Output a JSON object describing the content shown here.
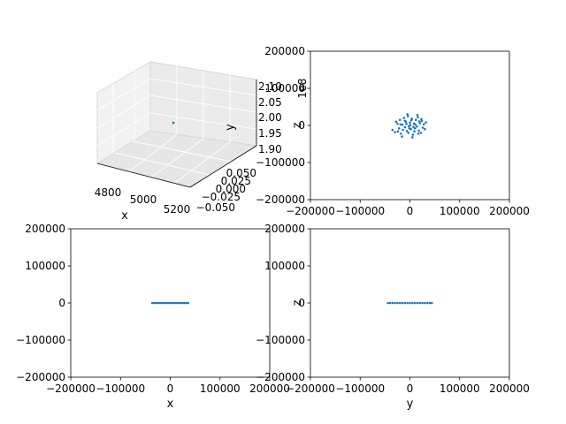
{
  "figure": {
    "background": "#ffffff",
    "marker_color": "#1f77b4"
  },
  "chart_data": [
    {
      "type": "scatter",
      "panel": "3d",
      "xlabel": "x",
      "ylabel": "y",
      "zlabel": "",
      "xticks": [
        "4800",
        "5000",
        "5200"
      ],
      "yticks": [
        "0.050",
        "0.025",
        "0.000",
        "−0.025",
        "−0.050"
      ],
      "zticks": [
        "2.10",
        "2.05",
        "2.00",
        "1.95",
        "1.90"
      ],
      "offset_label": "1e8",
      "points": [
        {
          "x": 5000,
          "y": 0.0,
          "z": 200000000.0
        }
      ],
      "grid": true
    },
    {
      "type": "scatter",
      "panel": "top-right",
      "xlabel": "",
      "ylabel": "z",
      "xlim": [
        -200000,
        200000
      ],
      "ylim": [
        -200000,
        200000
      ],
      "xticks": [
        "−200000",
        "−100000",
        "0",
        "100000",
        "200000"
      ],
      "yticks": [
        "−200000",
        "−100000",
        "0",
        "100000",
        "200000"
      ],
      "points": [
        [
          -35000,
          -12000
        ],
        [
          -30000,
          -18000
        ],
        [
          -25000,
          5000
        ],
        [
          -22000,
          -8000
        ],
        [
          -20000,
          15000
        ],
        [
          -18000,
          -22000
        ],
        [
          -15000,
          2000
        ],
        [
          -12000,
          20000
        ],
        [
          -10000,
          -5000
        ],
        [
          -8000,
          10000
        ],
        [
          -6000,
          -15000
        ],
        [
          -4000,
          25000
        ],
        [
          -2000,
          -2000
        ],
        [
          0,
          8000
        ],
        [
          2000,
          -10000
        ],
        [
          4000,
          18000
        ],
        [
          6000,
          -25000
        ],
        [
          8000,
          5000
        ],
        [
          10000,
          -8000
        ],
        [
          12000,
          15000
        ],
        [
          14000,
          -3000
        ],
        [
          16000,
          22000
        ],
        [
          18000,
          -14000
        ],
        [
          20000,
          6000
        ],
        [
          22000,
          -20000
        ],
        [
          24000,
          12000
        ],
        [
          26000,
          -6000
        ],
        [
          28000,
          3000
        ],
        [
          30000,
          -10000
        ],
        [
          32000,
          8000
        ],
        [
          -28000,
          10000
        ],
        [
          -16000,
          -30000
        ],
        [
          -5000,
          30000
        ],
        [
          5000,
          -32000
        ],
        [
          15000,
          28000
        ],
        [
          -10000,
          12000
        ],
        [
          3000,
          14000
        ],
        [
          -3000,
          -20000
        ],
        [
          9000,
          -16000
        ],
        [
          -14000,
          -12000
        ],
        [
          11000,
          2000
        ],
        [
          -7000,
          4000
        ],
        [
          7000,
          -4000
        ],
        [
          1000,
          1000
        ],
        [
          -1000,
          -8000
        ],
        [
          19000,
          11000
        ],
        [
          -19000,
          3000
        ],
        [
          23000,
          17000
        ],
        [
          -24000,
          -16000
        ],
        [
          17000,
          -22000
        ]
      ],
      "grid": false
    },
    {
      "type": "scatter",
      "panel": "bottom-left",
      "xlabel": "x",
      "ylabel": "",
      "xlim": [
        -200000,
        200000
      ],
      "ylim": [
        -200000,
        200000
      ],
      "xticks": [
        "−200000",
        "−100000",
        "0",
        "100000",
        "200000"
      ],
      "yticks": [
        "−200000",
        "−100000",
        "0",
        "100000",
        "200000"
      ],
      "points": [
        [
          -36000,
          0
        ],
        [
          -32000,
          0
        ],
        [
          -28000,
          0
        ],
        [
          -24000,
          0
        ],
        [
          -20000,
          0
        ],
        [
          -16000,
          0
        ],
        [
          -12000,
          0
        ],
        [
          -8000,
          0
        ],
        [
          -4000,
          0
        ],
        [
          0,
          0
        ],
        [
          4000,
          0
        ],
        [
          8000,
          0
        ],
        [
          12000,
          0
        ],
        [
          16000,
          0
        ],
        [
          20000,
          0
        ],
        [
          24000,
          0
        ],
        [
          28000,
          0
        ],
        [
          32000,
          0
        ],
        [
          36000,
          0
        ]
      ],
      "grid": false
    },
    {
      "type": "scatter",
      "panel": "bottom-right",
      "xlabel": "y",
      "ylabel": "z",
      "xlim": [
        -200000,
        200000
      ],
      "ylim": [
        -200000,
        200000
      ],
      "xticks": [
        "−200000",
        "−100000",
        "0",
        "100000",
        "200000"
      ],
      "yticks": [
        "−200000",
        "−100000",
        "0",
        "100000",
        "200000"
      ],
      "points": [
        [
          -44000,
          0
        ],
        [
          -40000,
          0
        ],
        [
          -35000,
          0
        ],
        [
          -30000,
          0
        ],
        [
          -25000,
          0
        ],
        [
          -20000,
          0
        ],
        [
          -15000,
          0
        ],
        [
          -10000,
          0
        ],
        [
          -5000,
          0
        ],
        [
          0,
          0
        ],
        [
          5000,
          0
        ],
        [
          10000,
          0
        ],
        [
          15000,
          0
        ],
        [
          20000,
          0
        ],
        [
          25000,
          0
        ],
        [
          30000,
          0
        ],
        [
          35000,
          0
        ],
        [
          40000,
          0
        ],
        [
          44000,
          0
        ]
      ],
      "grid": false
    }
  ]
}
